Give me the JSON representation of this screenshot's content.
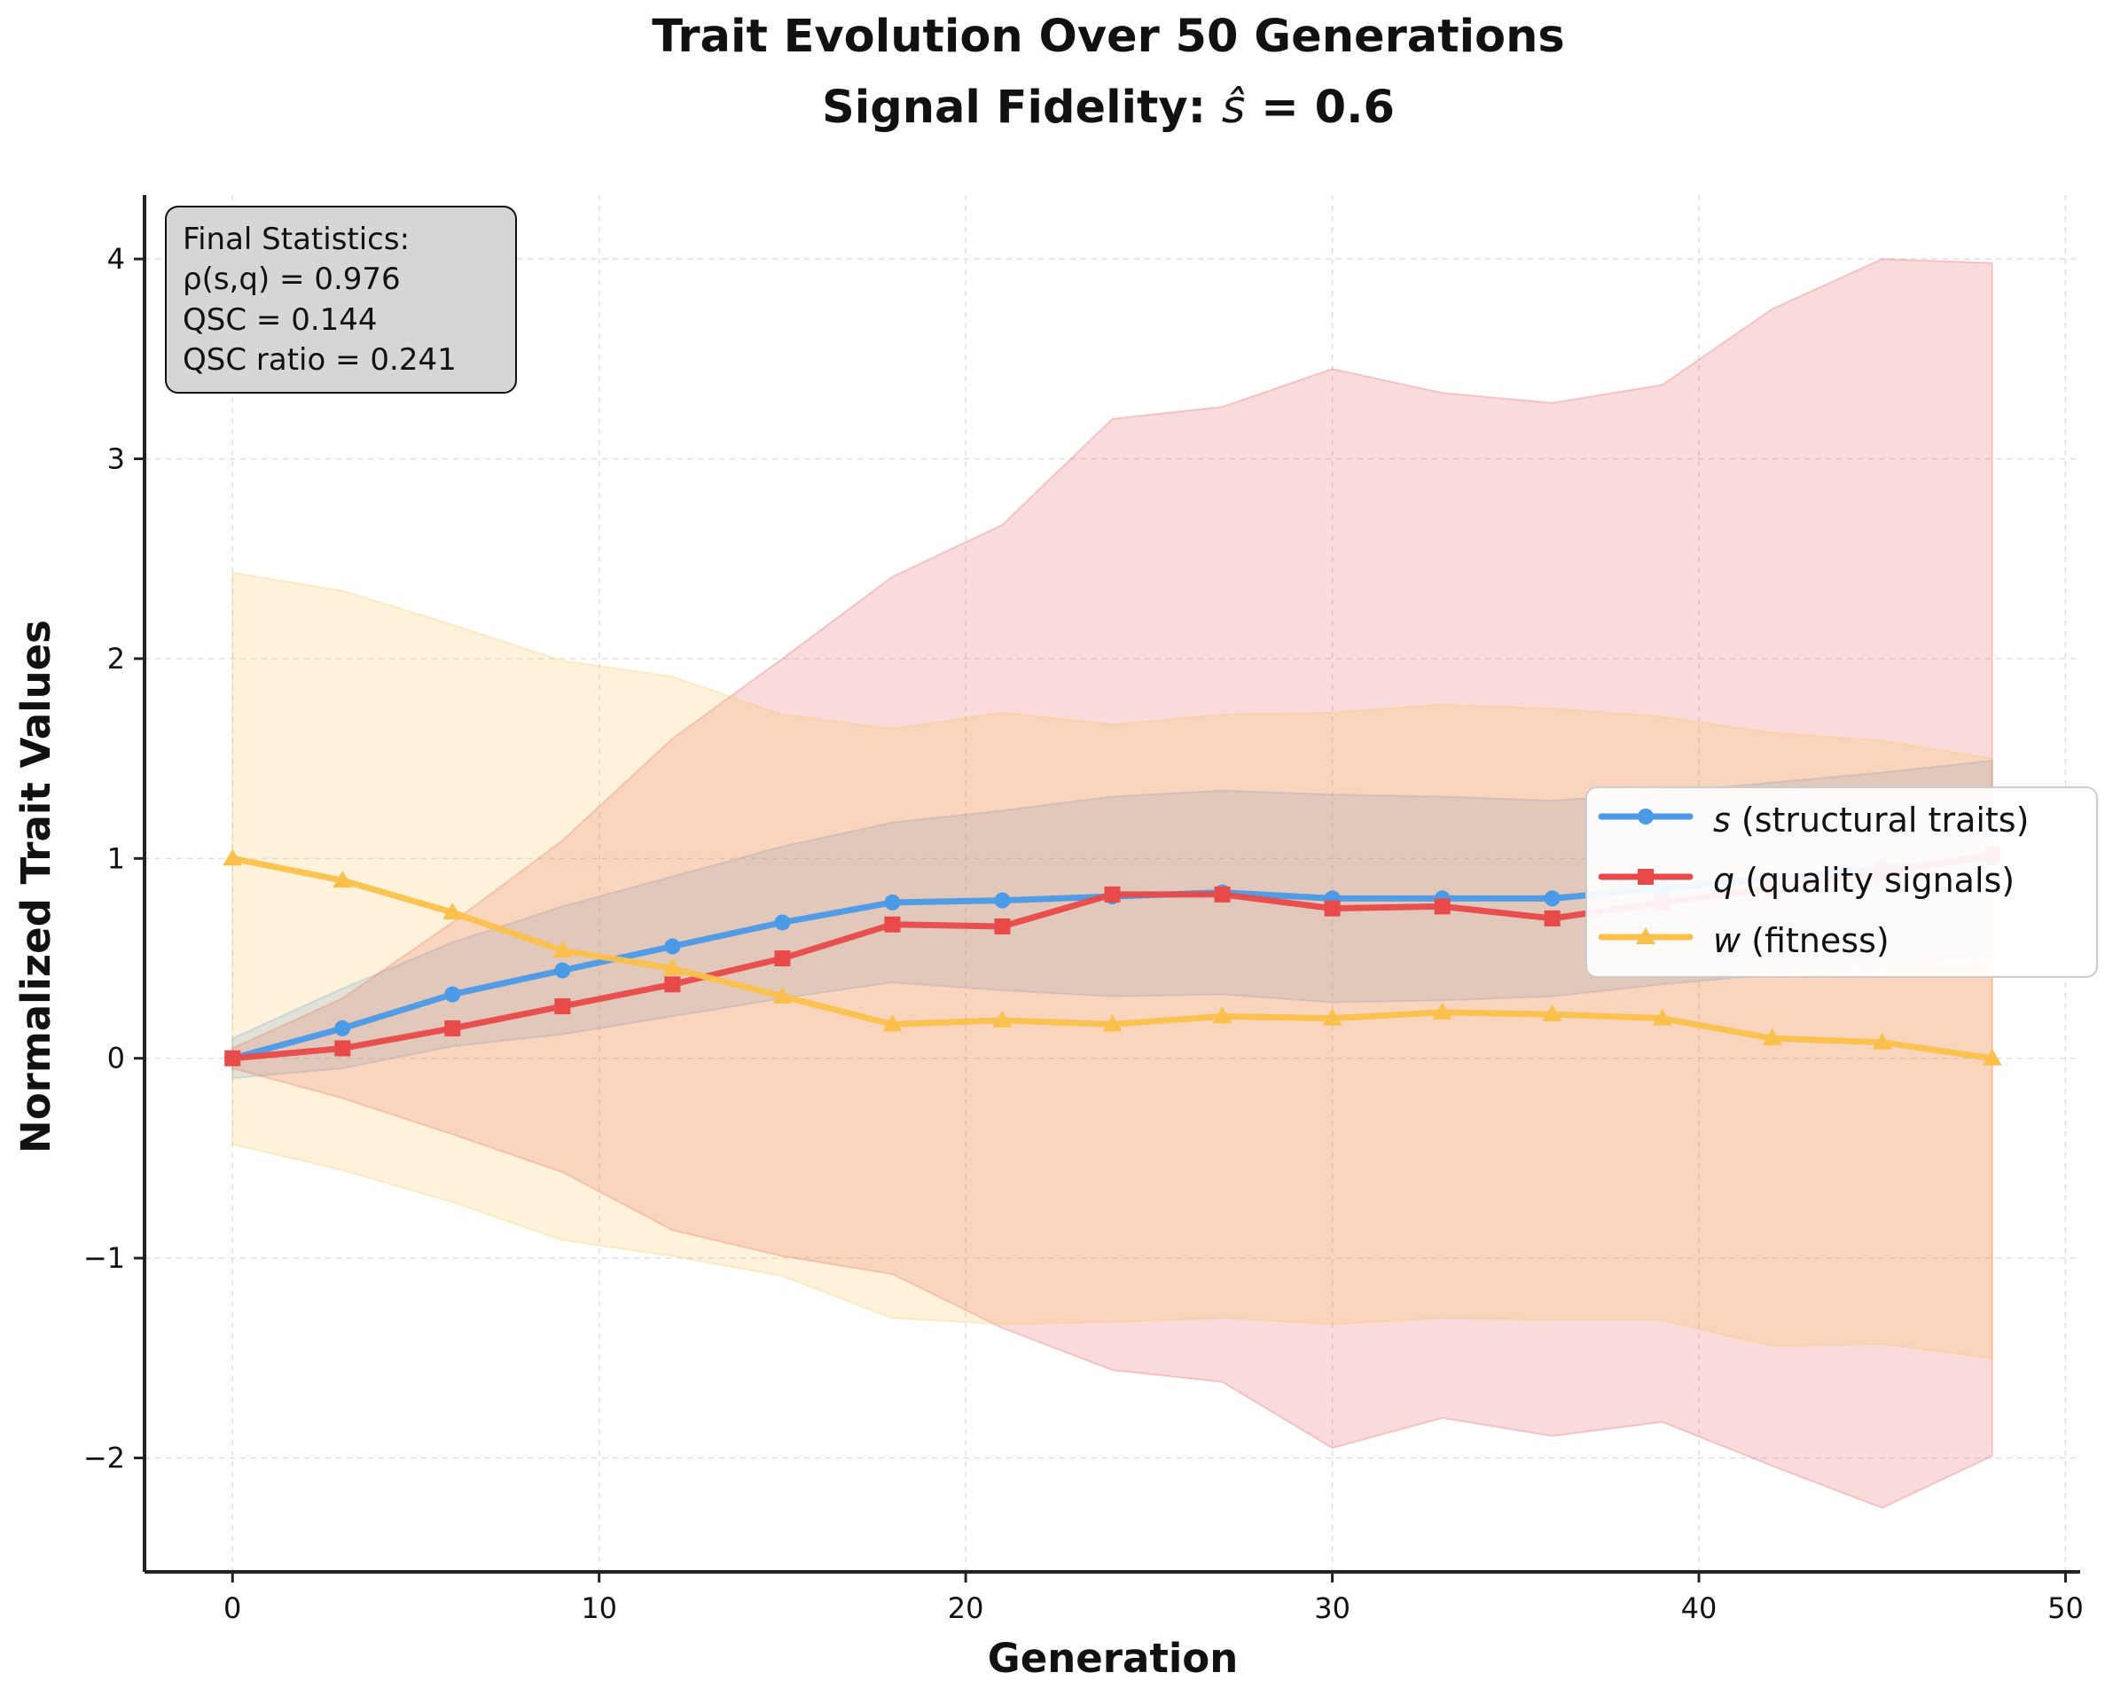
{
  "chart_data": {
    "type": "line",
    "title_line1": "Trait Evolution Over 50 Generations",
    "title_line2_prefix": "Signal Fidelity: ",
    "title_line2_symbol": "ŝ",
    "title_line2_suffix": " = 0.6",
    "xlabel": "Generation",
    "ylabel": "Normalized Trait Values",
    "xlim": [
      -2.4,
      50.4
    ],
    "ylim": [
      -2.57,
      4.32
    ],
    "xticks": [
      0,
      10,
      20,
      30,
      40,
      50
    ],
    "yticks": [
      -2,
      -1,
      0,
      1,
      2,
      3,
      4
    ],
    "grid": true,
    "legend_position": "center-right",
    "x": [
      0,
      3,
      6,
      9,
      12,
      15,
      18,
      21,
      24,
      27,
      30,
      33,
      36,
      39,
      42,
      45,
      48
    ],
    "series": [
      {
        "name_symbol": "s",
        "name_rest": " (structural traits)",
        "color": "#4a9ae8",
        "marker": "circle",
        "values": [
          0.0,
          0.15,
          0.32,
          0.44,
          0.56,
          0.68,
          0.78,
          0.79,
          0.81,
          0.83,
          0.8,
          0.8,
          0.8,
          0.85,
          0.9,
          0.95,
          1.0
        ],
        "upper": [
          0.1,
          0.35,
          0.58,
          0.76,
          0.91,
          1.06,
          1.18,
          1.24,
          1.31,
          1.34,
          1.32,
          1.31,
          1.29,
          1.33,
          1.38,
          1.43,
          1.49
        ],
        "lower": [
          -0.1,
          -0.05,
          0.06,
          0.12,
          0.21,
          0.3,
          0.38,
          0.34,
          0.31,
          0.32,
          0.28,
          0.29,
          0.31,
          0.37,
          0.42,
          0.47,
          0.51
        ]
      },
      {
        "name_symbol": "q",
        "name_rest": " (quality signals)",
        "color": "#e84a4a",
        "marker": "square",
        "values": [
          0.0,
          0.05,
          0.15,
          0.26,
          0.37,
          0.5,
          0.67,
          0.66,
          0.82,
          0.82,
          0.75,
          0.76,
          0.7,
          0.78,
          0.85,
          0.93,
          1.02
        ],
        "upper": [
          0.05,
          0.3,
          0.68,
          1.09,
          1.6,
          2.0,
          2.41,
          2.67,
          3.2,
          3.26,
          3.45,
          3.33,
          3.28,
          3.37,
          3.75,
          4.0,
          3.98
        ],
        "lower": [
          -0.05,
          -0.2,
          -0.38,
          -0.57,
          -0.86,
          -0.99,
          -1.08,
          -1.35,
          -1.56,
          -1.62,
          -1.95,
          -1.8,
          -1.89,
          -1.82,
          -2.04,
          -2.25,
          -1.99
        ]
      },
      {
        "name_symbol": "w",
        "name_rest": " (fitness)",
        "color": "#fbc04b",
        "marker": "triangle",
        "values": [
          1.0,
          0.89,
          0.73,
          0.54,
          0.45,
          0.31,
          0.17,
          0.19,
          0.17,
          0.21,
          0.2,
          0.23,
          0.22,
          0.2,
          0.1,
          0.08,
          0.0
        ],
        "upper": [
          2.43,
          2.34,
          2.17,
          1.99,
          1.91,
          1.72,
          1.65,
          1.73,
          1.67,
          1.72,
          1.73,
          1.77,
          1.75,
          1.71,
          1.63,
          1.59,
          1.5
        ],
        "lower": [
          -0.43,
          -0.56,
          -0.72,
          -0.91,
          -0.99,
          -1.09,
          -1.3,
          -1.33,
          -1.32,
          -1.3,
          -1.33,
          -1.3,
          -1.31,
          -1.31,
          -1.44,
          -1.43,
          -1.5
        ]
      }
    ]
  },
  "stats_box": {
    "lines": [
      "Final Statistics:",
      "ρ(s,q) = 0.976",
      "QSC = 0.144",
      "QSC ratio = 0.241"
    ]
  }
}
